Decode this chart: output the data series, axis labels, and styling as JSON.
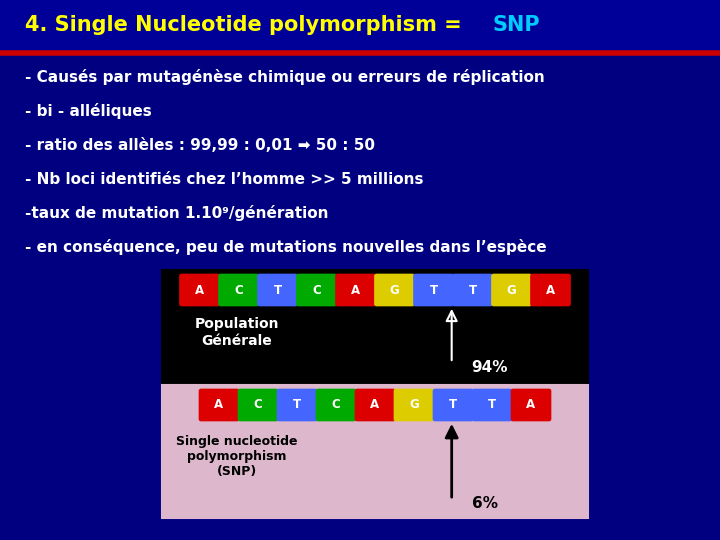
{
  "title_part1": "4. Single Nucleotide polymorphism = ",
  "title_snp": "SNP",
  "title_color1": "#FFFF00",
  "title_color2": "#00CCFF",
  "bg_color": "#000080",
  "bullet_color": "#FFFFFF",
  "bullets": [
    "- Causés par mutagénèse chimique ou erreurs de réplication",
    "- bi - alléliques",
    "- ratio des allèles : 99,99 : 0,01 ➡ 50 : 50",
    "- Nb loci identifiés chez l’homme >> 5 millions",
    "-taux de mutation 1.10⁹/génération",
    "- en conséquence, peu de mutations nouvelles dans l’espèce"
  ],
  "divider_color": "#CC0000",
  "pop_label": "Population\nGénérale",
  "pct_top": "94%",
  "pct_bot": "6%",
  "snp_label": "Single nucleotide\npolymorphism\n(SNP)",
  "nucleotides_top": [
    "A",
    "C",
    "T",
    "C",
    "A",
    "G",
    "T",
    "T",
    "G",
    "A"
  ],
  "colors_top": [
    "#DD0000",
    "#00AA00",
    "#4466FF",
    "#00AA00",
    "#DD0000",
    "#DDCC00",
    "#4466FF",
    "#4466FF",
    "#DDCC00",
    "#DD0000"
  ],
  "nucleotides_bot": [
    "A",
    "C",
    "T",
    "C",
    "A",
    "G",
    "T",
    "T",
    "A"
  ],
  "colors_bot": [
    "#DD0000",
    "#00AA00",
    "#4466FF",
    "#00AA00",
    "#DD0000",
    "#DDCC00",
    "#4466FF",
    "#4466FF",
    "#DD0000"
  ],
  "panel_top_bg": "#000000",
  "panel_bot_bg": "#DDB8CC",
  "top_panel_border": "#888888"
}
